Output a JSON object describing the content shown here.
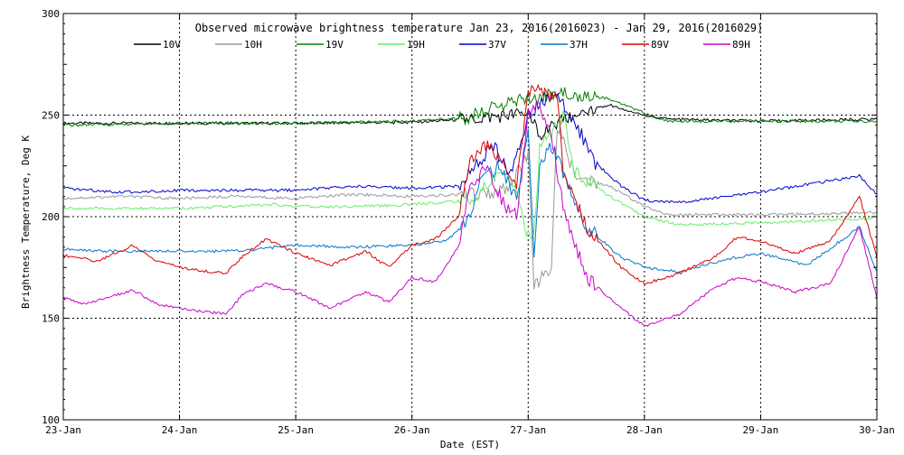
{
  "chart_data": {
    "type": "line",
    "title": "Observed microwave brightness temperature Jan 23, 2016(2016023) - Jan 29, 2016(2016029)",
    "xlabel": "Date (EST)",
    "ylabel": "Brightness Temperature, Deg K",
    "xlim": [
      0,
      7
    ],
    "ylim": [
      100,
      300
    ],
    "x_ticks": [
      {
        "value": 0,
        "label": "23-Jan"
      },
      {
        "value": 1,
        "label": "24-Jan"
      },
      {
        "value": 2,
        "label": "25-Jan"
      },
      {
        "value": 3,
        "label": "26-Jan"
      },
      {
        "value": 4,
        "label": "27-Jan"
      },
      {
        "value": 5,
        "label": "28-Jan"
      },
      {
        "value": 6,
        "label": "29-Jan"
      },
      {
        "value": 7,
        "label": "30-Jan"
      }
    ],
    "y_ticks": [
      100,
      150,
      200,
      250,
      300
    ],
    "grid": "dotted",
    "legend_position": "top",
    "series": [
      {
        "name": "10V",
        "color": "#000000",
        "points": [
          [
            0,
            246
          ],
          [
            1,
            246
          ],
          [
            2,
            246
          ],
          [
            3,
            246.5
          ],
          [
            3.5,
            248
          ],
          [
            4,
            251
          ],
          [
            4.1,
            240
          ],
          [
            4.3,
            247
          ],
          [
            4.5,
            253
          ],
          [
            4.7,
            255
          ],
          [
            5,
            250
          ],
          [
            5.2,
            248
          ],
          [
            6,
            247
          ],
          [
            7,
            248
          ]
        ]
      },
      {
        "name": "10H",
        "color": "#999999",
        "points": [
          [
            0,
            209
          ],
          [
            0.5,
            210
          ],
          [
            1,
            209
          ],
          [
            1.5,
            210
          ],
          [
            2,
            209
          ],
          [
            2.5,
            211
          ],
          [
            3,
            210
          ],
          [
            3.5,
            211
          ],
          [
            3.8,
            213
          ],
          [
            4,
            230
          ],
          [
            4.05,
            165
          ],
          [
            4.2,
            175
          ],
          [
            4.25,
            245
          ],
          [
            4.4,
            220
          ],
          [
            4.7,
            215
          ],
          [
            5,
            205
          ],
          [
            5.2,
            201
          ],
          [
            6,
            201
          ],
          [
            7,
            202
          ]
        ]
      },
      {
        "name": "19V",
        "color": "#008000",
        "points": [
          [
            0,
            245
          ],
          [
            1,
            246
          ],
          [
            2,
            246
          ],
          [
            3,
            247
          ],
          [
            3.5,
            249
          ],
          [
            3.6,
            252
          ],
          [
            4,
            258
          ],
          [
            4.3,
            261
          ],
          [
            4.7,
            258
          ],
          [
            5,
            251
          ],
          [
            5.2,
            247
          ],
          [
            6,
            247
          ],
          [
            7,
            247
          ]
        ]
      },
      {
        "name": "19H",
        "color": "#66ee66",
        "points": [
          [
            0,
            204
          ],
          [
            1,
            204
          ],
          [
            1.8,
            206
          ],
          [
            2,
            205
          ],
          [
            2.5,
            205
          ],
          [
            3,
            206
          ],
          [
            3.5,
            208
          ],
          [
            3.65,
            215
          ],
          [
            3.8,
            222
          ],
          [
            3.9,
            210
          ],
          [
            4,
            190
          ],
          [
            4.05,
            190
          ],
          [
            4.1,
            235
          ],
          [
            4.2,
            240
          ],
          [
            4.3,
            250
          ],
          [
            4.4,
            222
          ],
          [
            4.7,
            210
          ],
          [
            5,
            200
          ],
          [
            5.3,
            196
          ],
          [
            6,
            197
          ],
          [
            6.9,
            199
          ],
          [
            7,
            200
          ]
        ]
      },
      {
        "name": "37V",
        "color": "#0000cc",
        "points": [
          [
            0,
            214
          ],
          [
            0.5,
            212
          ],
          [
            1,
            213
          ],
          [
            1.5,
            213
          ],
          [
            2,
            213
          ],
          [
            2.5,
            215
          ],
          [
            3,
            214
          ],
          [
            3.4,
            215
          ],
          [
            3.5,
            222
          ],
          [
            3.7,
            235
          ],
          [
            3.85,
            220
          ],
          [
            4,
            250
          ],
          [
            4.2,
            260
          ],
          [
            4.3,
            255
          ],
          [
            4.4,
            248
          ],
          [
            4.55,
            228
          ],
          [
            4.8,
            215
          ],
          [
            5,
            208
          ],
          [
            5.3,
            207
          ],
          [
            6,
            212
          ],
          [
            6.85,
            220
          ],
          [
            7,
            211
          ]
        ]
      },
      {
        "name": "37H",
        "color": "#0077cc",
        "points": [
          [
            0,
            184
          ],
          [
            0.3,
            183
          ],
          [
            1,
            183
          ],
          [
            1.5,
            183
          ],
          [
            2,
            186
          ],
          [
            2.5,
            185
          ],
          [
            3,
            186
          ],
          [
            3.3,
            188
          ],
          [
            3.5,
            200
          ],
          [
            3.6,
            218
          ],
          [
            3.75,
            225
          ],
          [
            3.9,
            208
          ],
          [
            4,
            245
          ],
          [
            4.05,
            180
          ],
          [
            4.1,
            225
          ],
          [
            4.2,
            235
          ],
          [
            4.3,
            222
          ],
          [
            4.5,
            195
          ],
          [
            4.8,
            180
          ],
          [
            5,
            175
          ],
          [
            5.3,
            173
          ],
          [
            5.8,
            180
          ],
          [
            6,
            182
          ],
          [
            6.4,
            176
          ],
          [
            6.85,
            195
          ],
          [
            7,
            173
          ]
        ]
      },
      {
        "name": "89V",
        "color": "#dd0000",
        "points": [
          [
            0,
            181
          ],
          [
            0.3,
            178
          ],
          [
            0.6,
            186
          ],
          [
            0.8,
            178
          ],
          [
            1.1,
            174
          ],
          [
            1.4,
            172
          ],
          [
            1.55,
            181
          ],
          [
            1.75,
            189
          ],
          [
            2,
            182
          ],
          [
            2.3,
            176
          ],
          [
            2.6,
            183
          ],
          [
            2.8,
            175
          ],
          [
            3,
            186
          ],
          [
            3.2,
            189
          ],
          [
            3.4,
            200
          ],
          [
            3.5,
            228
          ],
          [
            3.65,
            235
          ],
          [
            3.8,
            225
          ],
          [
            3.9,
            215
          ],
          [
            4,
            262
          ],
          [
            4.1,
            264
          ],
          [
            4.2,
            258
          ],
          [
            4.25,
            262
          ],
          [
            4.3,
            225
          ],
          [
            4.5,
            195
          ],
          [
            4.8,
            175
          ],
          [
            5,
            167
          ],
          [
            5.3,
            172
          ],
          [
            5.6,
            180
          ],
          [
            5.8,
            190
          ],
          [
            6,
            188
          ],
          [
            6.3,
            182
          ],
          [
            6.6,
            188
          ],
          [
            6.85,
            210
          ],
          [
            7,
            180
          ]
        ]
      },
      {
        "name": "89H",
        "color": "#cc00cc",
        "points": [
          [
            0,
            160
          ],
          [
            0.2,
            157
          ],
          [
            0.6,
            164
          ],
          [
            0.8,
            157
          ],
          [
            1.1,
            154
          ],
          [
            1.4,
            152
          ],
          [
            1.55,
            162
          ],
          [
            1.75,
            167
          ],
          [
            2,
            163
          ],
          [
            2.3,
            155
          ],
          [
            2.6,
            163
          ],
          [
            2.8,
            158
          ],
          [
            3,
            170
          ],
          [
            3.2,
            168
          ],
          [
            3.4,
            185
          ],
          [
            3.5,
            215
          ],
          [
            3.65,
            225
          ],
          [
            3.8,
            205
          ],
          [
            3.9,
            200
          ],
          [
            4,
            250
          ],
          [
            4.1,
            255
          ],
          [
            4.2,
            240
          ],
          [
            4.3,
            205
          ],
          [
            4.5,
            170
          ],
          [
            4.8,
            155
          ],
          [
            5,
            146
          ],
          [
            5.3,
            152
          ],
          [
            5.6,
            165
          ],
          [
            5.8,
            170
          ],
          [
            6,
            168
          ],
          [
            6.3,
            163
          ],
          [
            6.6,
            167
          ],
          [
            6.85,
            195
          ],
          [
            7,
            160
          ]
        ]
      }
    ]
  }
}
